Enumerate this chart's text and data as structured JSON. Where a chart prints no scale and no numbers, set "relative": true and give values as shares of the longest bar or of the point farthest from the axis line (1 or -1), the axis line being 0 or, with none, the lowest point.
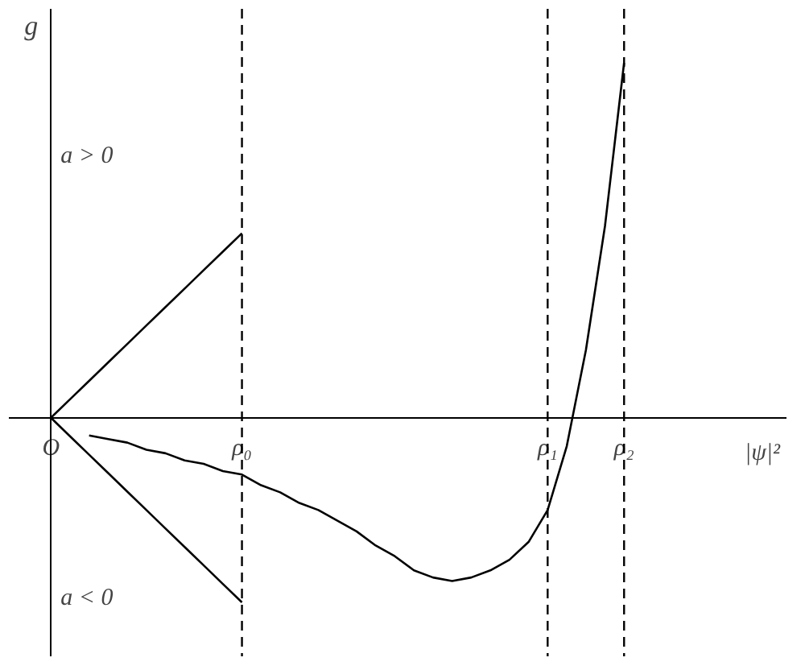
{
  "chart_data": {
    "type": "line",
    "relative": true,
    "xlabel": "|ψ|²",
    "ylabel": "g",
    "tick_labels": "x",
    "categories": [
      "O",
      null,
      null,
      null,
      null,
      null,
      null,
      null,
      null,
      null,
      "ρ₀",
      null,
      null,
      null,
      null,
      null,
      null,
      null,
      null,
      null,
      null,
      null,
      null,
      null,
      null,
      null,
      "ρ₁",
      null,
      null,
      null,
      "ρ₂",
      null,
      null,
      null,
      null,
      null,
      null,
      null,
      null
    ],
    "annotations": [
      "a > 0",
      "a < 0"
    ],
    "ref_lines": [
      {
        "axis": "x",
        "value": "ρ₀",
        "line_style": "dashed",
        "color": "#000000"
      },
      {
        "axis": "x",
        "value": "ρ₁",
        "line_style": "dashed",
        "color": "#000000"
      },
      {
        "axis": "x",
        "value": "ρ₂",
        "line_style": "dashed",
        "color": "#000000"
      }
    ],
    "series": [
      {
        "color": "#000000",
        "values": [
          0,
          0.052,
          0.104,
          0.156,
          0.208,
          0.26,
          0.312,
          0.364,
          0.416,
          0.468,
          0.52,
          null,
          null,
          null,
          null,
          null,
          null,
          null,
          null,
          null,
          null,
          null,
          null,
          null,
          null,
          null,
          null,
          null,
          null,
          null,
          null,
          null,
          null,
          null,
          null,
          null,
          null,
          null,
          null
        ]
      },
      {
        "color": "#000000",
        "values": [
          0,
          -0.052,
          -0.104,
          -0.156,
          -0.208,
          -0.26,
          -0.312,
          -0.364,
          -0.416,
          -0.468,
          -0.52,
          null,
          null,
          null,
          null,
          null,
          null,
          null,
          null,
          null,
          null,
          null,
          null,
          null,
          null,
          null,
          null,
          null,
          null,
          null,
          null,
          null,
          null,
          null,
          null,
          null,
          null,
          null,
          null
        ]
      },
      {
        "color": "#000000",
        "values": [
          null,
          null,
          -0.05,
          -0.06,
          -0.07,
          -0.09,
          -0.1,
          -0.12,
          -0.13,
          -0.15,
          -0.16,
          -0.19,
          -0.21,
          -0.24,
          -0.26,
          -0.29,
          -0.32,
          -0.36,
          -0.39,
          -0.43,
          -0.45,
          -0.46,
          -0.45,
          -0.43,
          -0.4,
          -0.35,
          -0.26,
          -0.08,
          0.19,
          0.54,
          1,
          null,
          null,
          null,
          null,
          null,
          null,
          null,
          null
        ]
      }
    ]
  }
}
